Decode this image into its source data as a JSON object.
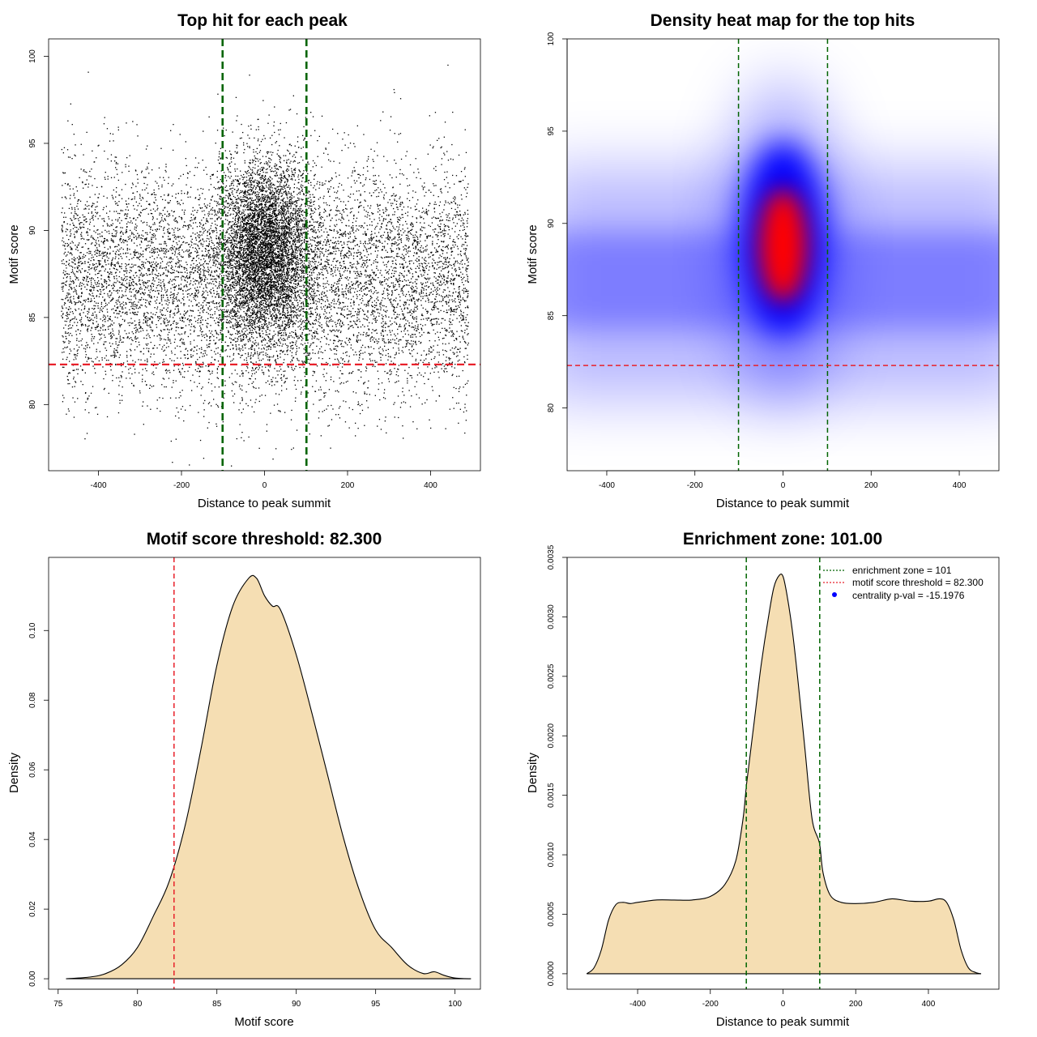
{
  "chart_data": [
    {
      "id": "scatter",
      "type": "scatter",
      "title": "Top hit for each peak",
      "xlabel": "Distance to peak summit",
      "ylabel": "Motif score",
      "xlim": [
        -520,
        520
      ],
      "ylim": [
        76.2,
        101.0
      ],
      "xticks": [
        -400,
        -200,
        0,
        200,
        400
      ],
      "yticks": [
        80,
        85,
        90,
        95,
        100
      ],
      "x_range_of_points": [
        -490,
        490
      ],
      "n_points_background": 9000,
      "n_points_central": 5500,
      "central_score_mean": 88.8,
      "background_score_mean": 87.2,
      "vlines": [
        -101,
        101
      ],
      "hline": 82.3,
      "vline_color": "#006400",
      "hline_color": "#e8202a",
      "point_color": "#000000"
    },
    {
      "id": "heatmap",
      "type": "heatmap",
      "title": "Density heat map for the top hits",
      "xlabel": "Distance to peak summit",
      "ylabel": "Motif score",
      "xlim": [
        -490,
        490
      ],
      "ylim": [
        76.6,
        100.0
      ],
      "xticks": [
        -400,
        -200,
        0,
        200,
        400
      ],
      "yticks": [
        80,
        85,
        90,
        95,
        100
      ],
      "colors": [
        "#ffffff",
        "#0000ff",
        "#ff0000"
      ],
      "peak_center": [
        0,
        88.8
      ],
      "vlines": [
        -101,
        101
      ],
      "hline": 82.3,
      "vline_color": "#006400",
      "hline_color": "#e8202a"
    },
    {
      "id": "score_density",
      "type": "area",
      "title": "Motif score threshold: 82.300",
      "xlabel": "Motif score",
      "ylabel": "Density",
      "xlim": [
        74.4,
        101.6
      ],
      "ylim": [
        -0.003,
        0.121
      ],
      "xticks": [
        75,
        80,
        85,
        90,
        95,
        100
      ],
      "yticks": [
        0.0,
        0.02,
        0.04,
        0.06,
        0.08,
        0.1
      ],
      "ytick_labels": [
        "0.00",
        "0.02",
        "0.04",
        "0.06",
        "0.08",
        "0.10"
      ],
      "x": [
        75.5,
        77,
        78,
        79,
        80,
        81,
        82,
        83,
        84,
        85,
        86,
        87,
        87.5,
        88,
        88.5,
        89,
        90,
        91,
        92,
        93,
        94,
        95,
        96,
        97,
        98,
        98.7,
        99.3,
        100,
        101
      ],
      "y": [
        0.0,
        0.0005,
        0.0015,
        0.004,
        0.009,
        0.018,
        0.028,
        0.044,
        0.066,
        0.09,
        0.107,
        0.115,
        0.115,
        0.11,
        0.107,
        0.106,
        0.093,
        0.076,
        0.058,
        0.04,
        0.025,
        0.014,
        0.009,
        0.004,
        0.0015,
        0.002,
        0.001,
        0.0002,
        0.0
      ],
      "fill_color": "#f5deb3",
      "vline": 82.3,
      "vline_color": "#e8202a"
    },
    {
      "id": "distance_density",
      "type": "area",
      "title": "Enrichment zone: 101.00",
      "xlabel": "Distance to peak summit",
      "ylabel": "Density",
      "xlim": [
        -594,
        594
      ],
      "ylim": [
        -0.00013,
        0.0035
      ],
      "xticks": [
        -400,
        -200,
        0,
        200,
        400
      ],
      "yticks": [
        0.0,
        0.0005,
        0.001,
        0.0015,
        0.002,
        0.0025,
        0.003,
        0.0035
      ],
      "ytick_labels": [
        "0.0000",
        "0.0005",
        "0.0010",
        "0.0015",
        "0.0020",
        "0.0025",
        "0.0030",
        "0.0035"
      ],
      "x": [
        -540,
        -520,
        -500,
        -480,
        -460,
        -440,
        -420,
        -400,
        -350,
        -300,
        -250,
        -200,
        -160,
        -130,
        -110,
        -100,
        -80,
        -60,
        -40,
        -25,
        -10,
        0,
        10,
        25,
        40,
        60,
        80,
        100,
        110,
        130,
        160,
        200,
        250,
        300,
        350,
        400,
        430,
        450,
        470,
        490,
        510,
        530,
        545
      ],
      "y": [
        0.0,
        5e-05,
        0.0002,
        0.00045,
        0.00058,
        0.0006,
        0.00059,
        0.0006,
        0.00062,
        0.00062,
        0.00062,
        0.00065,
        0.00075,
        0.00095,
        0.0013,
        0.0016,
        0.0021,
        0.0026,
        0.003,
        0.00325,
        0.00335,
        0.00334,
        0.0032,
        0.0029,
        0.0025,
        0.0019,
        0.0013,
        0.0011,
        0.00085,
        0.00066,
        0.0006,
        0.00059,
        0.0006,
        0.00063,
        0.00061,
        0.00061,
        0.00063,
        0.0006,
        0.00045,
        0.0002,
        5e-05,
        1e-05,
        0.0
      ],
      "fill_color": "#f5deb3",
      "vlines": [
        -101,
        101
      ],
      "vline_color": "#006400",
      "legend": {
        "position": "top-right",
        "entries": [
          {
            "label": "enrichment zone = 101",
            "color": "#006400",
            "style": "dotted-line"
          },
          {
            "label": "motif score threshold = 82.300",
            "color": "#e8202a",
            "style": "dotted-line"
          },
          {
            "label": "centrality p-val = -15.1976",
            "color": "#0000ff",
            "style": "point"
          }
        ]
      }
    }
  ]
}
